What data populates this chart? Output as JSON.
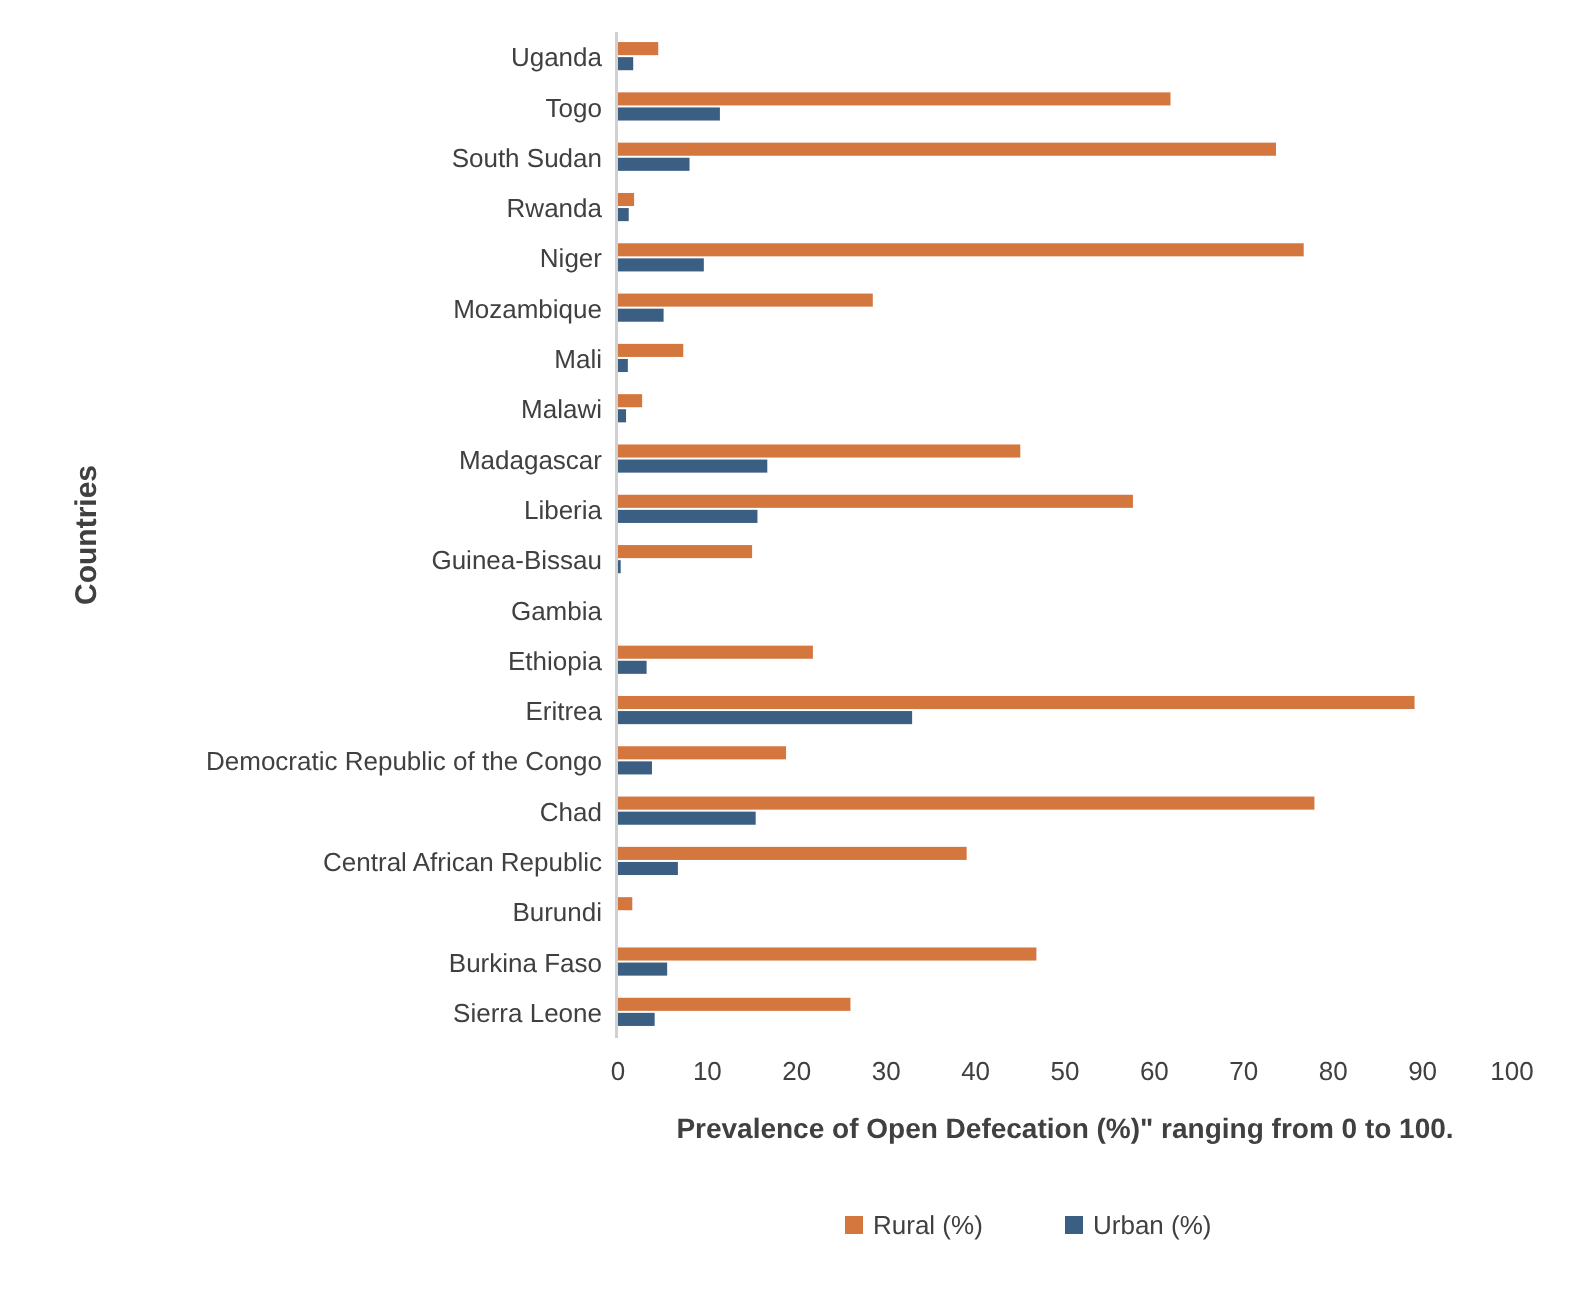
{
  "chart_data": {
    "type": "bar",
    "orientation": "horizontal",
    "xlabel": "Prevalence of Open Defecation (%)\" ranging from 0 to 100.",
    "ylabel": "Countries",
    "categories": [
      "Uganda",
      "Togo",
      "South Sudan",
      "Rwanda",
      "Niger",
      "Mozambique",
      "Mali",
      "Malawi",
      "Madagascar",
      "Liberia",
      "Guinea-Bissau",
      "Gambia",
      "Ethiopia",
      "Eritrea",
      "Democratic Republic of the Congo",
      "Chad",
      "Central African Republic",
      "Burundi",
      "Burkina Faso",
      "Sierra Leone"
    ],
    "series": [
      {
        "name": "Rural (%)",
        "color": "#d4773f",
        "values": [
          4.5,
          61.8,
          73.6,
          1.8,
          76.7,
          28.5,
          7.3,
          2.7,
          45.0,
          57.6,
          15.0,
          null,
          21.8,
          89.1,
          18.8,
          77.9,
          39.0,
          1.6,
          46.8,
          26.0
        ]
      },
      {
        "name": "Urban (%)",
        "color": "#3b5f82",
        "values": [
          1.7,
          11.4,
          8.0,
          1.2,
          9.6,
          5.1,
          1.1,
          0.9,
          16.7,
          15.6,
          0.3,
          null,
          3.2,
          32.9,
          3.8,
          15.4,
          6.7,
          null,
          5.5,
          4.1
        ]
      }
    ],
    "xlim": [
      0,
      100
    ],
    "xticks": [
      0,
      10,
      20,
      30,
      40,
      50,
      60,
      70,
      80,
      90,
      100
    ],
    "grid": false,
    "legend": "bottom"
  }
}
